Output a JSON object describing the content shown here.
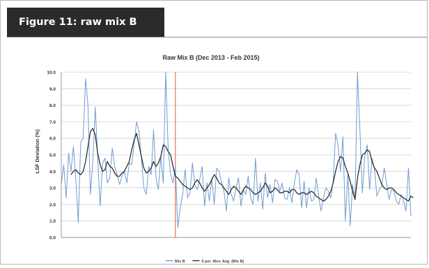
{
  "figure_label": "Figure 11: raw mix B",
  "colors": {
    "label_bg": "#2b2b2b",
    "raw": "#6f9cd0",
    "avg": "#2e2e2e",
    "marker": "#e0543c",
    "grid": "#cfcfcf"
  },
  "chart_data": {
    "type": "line",
    "title": "Raw Mix B (Dec 2013 - Feb 2015)",
    "xlabel": "",
    "ylabel": "LSF Deviation (%)",
    "ylim": [
      0,
      10
    ],
    "yticks": [
      "0.0",
      "1.0",
      "2.0",
      "3.0",
      "4.0",
      "5.0",
      "6.0",
      "7.0",
      "8.0",
      "9.0",
      "10.0"
    ],
    "grid": true,
    "legend_position": "bottom",
    "vertical_marker_index": 47,
    "series": [
      {
        "name": "Mix B",
        "style": "raw",
        "values": [
          3.2,
          4.4,
          2.4,
          5.1,
          4.0,
          5.5,
          3.5,
          0.9,
          5.8,
          6.0,
          9.6,
          8.0,
          2.6,
          4.6,
          7.9,
          4.8,
          1.9,
          4.5,
          4.8,
          3.3,
          3.6,
          5.4,
          4.3,
          3.8,
          3.2,
          3.7,
          4.0,
          3.3,
          4.5,
          4.4,
          5.7,
          7.0,
          6.4,
          4.8,
          3.0,
          2.6,
          4.3,
          3.8,
          6.5,
          3.6,
          2.9,
          4.9,
          3.3,
          10.0,
          5.4,
          3.8,
          3.3,
          4.3,
          0.6,
          1.8,
          2.6,
          4.1,
          2.4,
          2.7,
          4.5,
          3.2,
          2.9,
          3.5,
          4.3,
          1.9,
          3.3,
          2.2,
          3.6,
          2.0,
          4.2,
          4.0,
          3.3,
          2.8,
          1.6,
          3.6,
          2.6,
          2.2,
          3.0,
          3.6,
          1.9,
          2.9,
          2.6,
          3.7,
          2.4,
          2.0,
          4.8,
          2.2,
          3.3,
          1.7,
          3.9,
          2.4,
          3.2,
          2.1,
          3.5,
          3.4,
          2.8,
          3.3,
          2.4,
          2.3,
          3.0,
          2.1,
          3.3,
          4.1,
          3.8,
          1.8,
          3.4,
          1.8,
          3.0,
          2.2,
          2.3,
          3.6,
          2.5,
          1.6,
          2.4,
          3.0,
          2.8,
          2.4,
          3.4,
          6.3,
          5.6,
          4.0,
          6.1,
          1.0,
          3.8,
          0.7,
          3.2,
          2.3,
          10.0,
          6.5,
          2.7,
          4.9,
          5.6,
          2.9,
          4.8,
          4.1,
          2.5,
          2.9,
          3.1,
          4.2,
          3.3,
          2.3,
          2.9,
          2.8,
          2.2,
          2.0,
          2.6,
          2.2,
          1.6,
          4.2,
          1.3
        ]
      },
      {
        "name": "5 per. Mov. Avg. (Mix B)",
        "style": "avg",
        "values": [
          null,
          null,
          null,
          null,
          3.8,
          4.0,
          4.1,
          3.9,
          3.8,
          4.0,
          4.6,
          5.5,
          6.4,
          6.6,
          6.2,
          5.1,
          4.4,
          4.0,
          4.1,
          4.6,
          4.3,
          4.2,
          3.9,
          3.7,
          3.7,
          3.9,
          4.0,
          4.3,
          4.6,
          5.3,
          5.9,
          6.3,
          5.6,
          4.9,
          4.2,
          3.9,
          4.0,
          4.2,
          4.6,
          4.3,
          4.5,
          4.9,
          5.6,
          5.5,
          5.2,
          5.0,
          4.3,
          3.7,
          3.6,
          3.4,
          3.2,
          3.1,
          3.0,
          2.9,
          3.0,
          3.3,
          3.5,
          3.3,
          3.0,
          2.8,
          3.0,
          3.2,
          3.5,
          3.8,
          3.6,
          3.3,
          3.2,
          3.0,
          2.8,
          2.6,
          2.9,
          3.1,
          3.0,
          2.8,
          2.6,
          2.9,
          3.1,
          3.0,
          2.9,
          2.7,
          2.6,
          2.7,
          2.8,
          3.0,
          3.3,
          3.1,
          2.7,
          2.8,
          3.0,
          2.9,
          2.7,
          2.7,
          2.8,
          2.8,
          2.7,
          2.9,
          2.9,
          2.7,
          2.6,
          2.7,
          2.7,
          2.6,
          2.7,
          2.8,
          2.7,
          2.5,
          2.4,
          2.3,
          2.2,
          2.3,
          2.5,
          2.8,
          3.3,
          4.0,
          4.6,
          4.9,
          4.8,
          4.3,
          3.9,
          3.4,
          2.8,
          2.3,
          3.6,
          4.4,
          5.0,
          5.1,
          5.3,
          5.2,
          4.6,
          4.2,
          4.0,
          3.6,
          3.2,
          3.0,
          2.9,
          3.0,
          3.0,
          2.9,
          2.7,
          2.6,
          2.5,
          2.4,
          2.3,
          2.2,
          2.5,
          2.4
        ]
      }
    ]
  }
}
